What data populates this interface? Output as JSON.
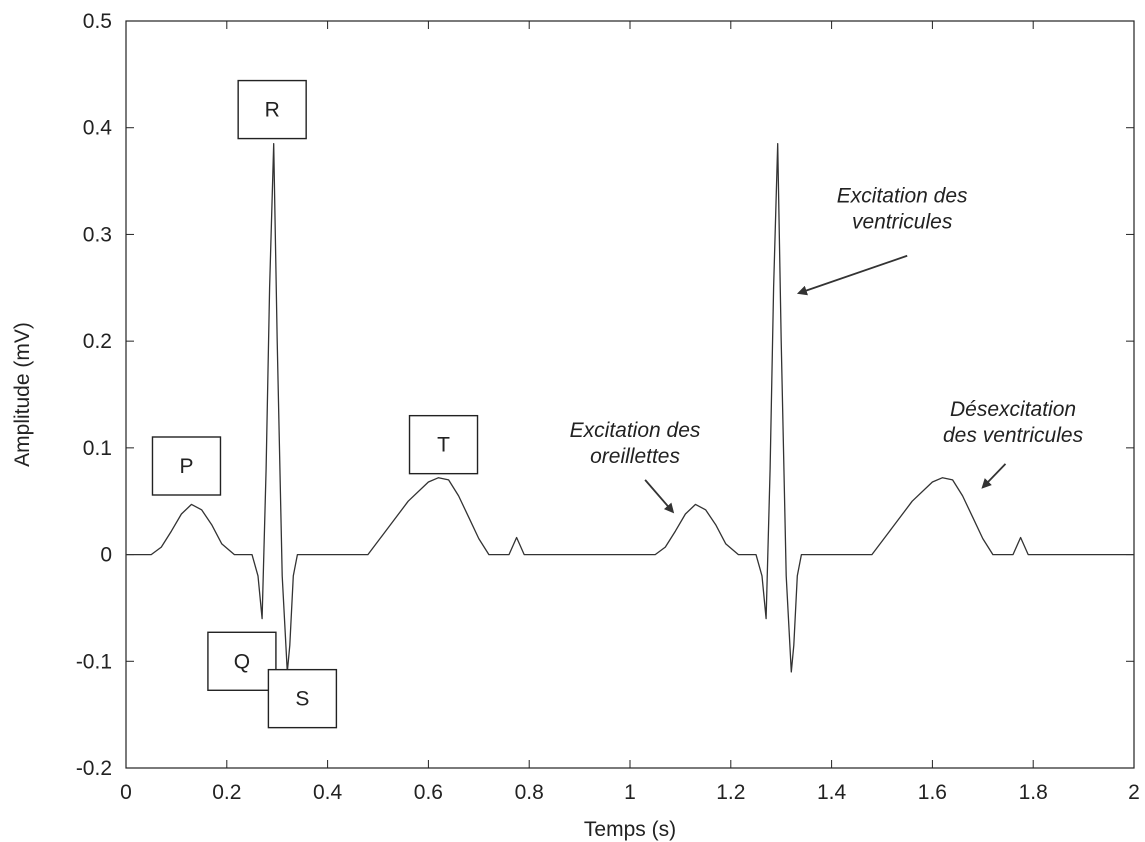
{
  "chart_data": {
    "type": "line",
    "xlabel": "Temps (s)",
    "ylabel": "Amplitude (mV)",
    "xlim": [
      0,
      2
    ],
    "ylim": [
      -0.2,
      0.5
    ],
    "grid": false,
    "x_ticks": [
      "0",
      "0.2",
      "0.4",
      "0.6",
      "0.8",
      "1",
      "1.2",
      "1.4",
      "1.6",
      "1.8",
      "2"
    ],
    "y_ticks": [
      "-0.2",
      "-0.1",
      "0",
      "0.1",
      "0.2",
      "0.3",
      "0.4",
      "0.5"
    ],
    "series": [
      {
        "x": [
          0,
          0.05,
          0.07,
          0.09,
          0.11,
          0.13,
          0.15,
          0.17,
          0.19,
          0.215,
          0.25,
          0.262,
          0.27,
          0.278,
          0.285,
          0.293,
          0.3,
          0.31,
          0.32,
          0.325,
          0.332,
          0.34,
          0.36,
          0.4,
          0.48,
          0.52,
          0.56,
          0.6,
          0.62,
          0.64,
          0.66,
          0.68,
          0.7,
          0.72,
          0.76,
          0.775,
          0.79,
          0.81,
          0.85,
          1.05,
          1.07,
          1.09,
          1.11,
          1.13,
          1.15,
          1.17,
          1.19,
          1.215,
          1.25,
          1.262,
          1.27,
          1.278,
          1.285,
          1.293,
          1.3,
          1.31,
          1.32,
          1.325,
          1.332,
          1.34,
          1.36,
          1.4,
          1.48,
          1.52,
          1.56,
          1.6,
          1.62,
          1.64,
          1.66,
          1.68,
          1.7,
          1.72,
          1.76,
          1.775,
          1.79,
          1.81,
          1.85,
          2.0
        ],
        "y": [
          0,
          0,
          0.007,
          0.022,
          0.038,
          0.047,
          0.042,
          0.028,
          0.01,
          0,
          0,
          -0.02,
          -0.06,
          0.08,
          0.25,
          0.385,
          0.2,
          -0.02,
          -0.11,
          -0.085,
          -0.02,
          0,
          0,
          0,
          0,
          0.025,
          0.05,
          0.068,
          0.072,
          0.07,
          0.055,
          0.035,
          0.015,
          0,
          0,
          0.016,
          0,
          0,
          0,
          0,
          0.007,
          0.022,
          0.038,
          0.047,
          0.042,
          0.028,
          0.01,
          0,
          0,
          -0.02,
          -0.06,
          0.08,
          0.25,
          0.385,
          0.2,
          -0.02,
          -0.11,
          -0.085,
          -0.02,
          0,
          0,
          0,
          0,
          0.025,
          0.05,
          0.068,
          0.072,
          0.07,
          0.055,
          0.035,
          0.015,
          0,
          0,
          0.016,
          0,
          0,
          0,
          0
        ]
      }
    ],
    "wave_labels": [
      {
        "text": "P",
        "x": 0.12,
        "y": 0.083
      },
      {
        "text": "R",
        "x": 0.29,
        "y": 0.417
      },
      {
        "text": "T",
        "x": 0.63,
        "y": 0.103
      },
      {
        "text": "Q",
        "x": 0.23,
        "y": -0.1
      },
      {
        "text": "S",
        "x": 0.35,
        "y": -0.135
      }
    ],
    "annotations": [
      {
        "lines": [
          "Excitation des",
          "ventricules"
        ],
        "x": 1.54,
        "y": 0.33,
        "arrow_from": [
          1.55,
          0.28
        ],
        "arrow_to": [
          1.335,
          0.245
        ]
      },
      {
        "lines": [
          "Excitation des",
          "oreillettes"
        ],
        "x": 1.01,
        "y": 0.11,
        "arrow_from": [
          1.03,
          0.07
        ],
        "arrow_to": [
          1.085,
          0.04
        ]
      },
      {
        "lines": [
          "Désexcitation",
          "des ventricules"
        ],
        "x": 1.76,
        "y": 0.13,
        "arrow_from": [
          1.745,
          0.085
        ],
        "arrow_to": [
          1.7,
          0.063
        ]
      }
    ],
    "colors": {
      "line": "#333333",
      "axis": "#222222",
      "text": "#222222"
    }
  }
}
